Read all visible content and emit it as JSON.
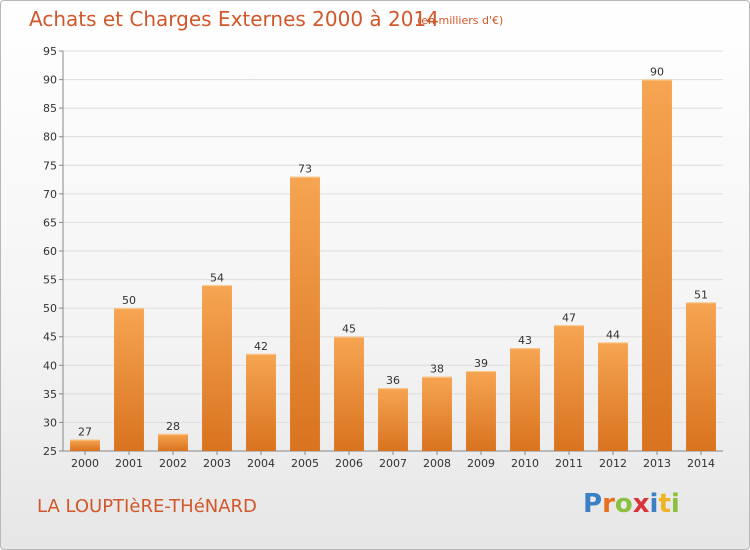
{
  "header": {
    "title": "Achats et Charges Externes 2000 à 2014",
    "subtitle": "(en milliers d'€)"
  },
  "footer": {
    "commune": "LA LOUPTIèRE-THéNARD",
    "logo_letters": [
      "P",
      "r",
      "o",
      "x",
      "i",
      "t",
      "i"
    ]
  },
  "colors": {
    "bar_top": "#f6a552",
    "bar_bottom": "#d9731f",
    "title": "#d2572a",
    "grid": "#dddddd"
  },
  "chart_data": {
    "type": "bar",
    "title": "Achats et Charges Externes 2000 à 2014",
    "subtitle": "(en milliers d'€)",
    "xlabel": "",
    "ylabel": "",
    "categories": [
      "2000",
      "2001",
      "2002",
      "2003",
      "2004",
      "2005",
      "2006",
      "2007",
      "2008",
      "2009",
      "2010",
      "2011",
      "2012",
      "2013",
      "2014"
    ],
    "values": [
      27,
      50,
      28,
      54,
      42,
      73,
      45,
      36,
      38,
      39,
      43,
      47,
      44,
      90,
      51
    ],
    "ylim": [
      25,
      95
    ],
    "yticks": [
      25,
      30,
      35,
      40,
      45,
      50,
      55,
      60,
      65,
      70,
      75,
      80,
      85,
      90,
      95
    ],
    "grid": true,
    "legend": "none"
  }
}
